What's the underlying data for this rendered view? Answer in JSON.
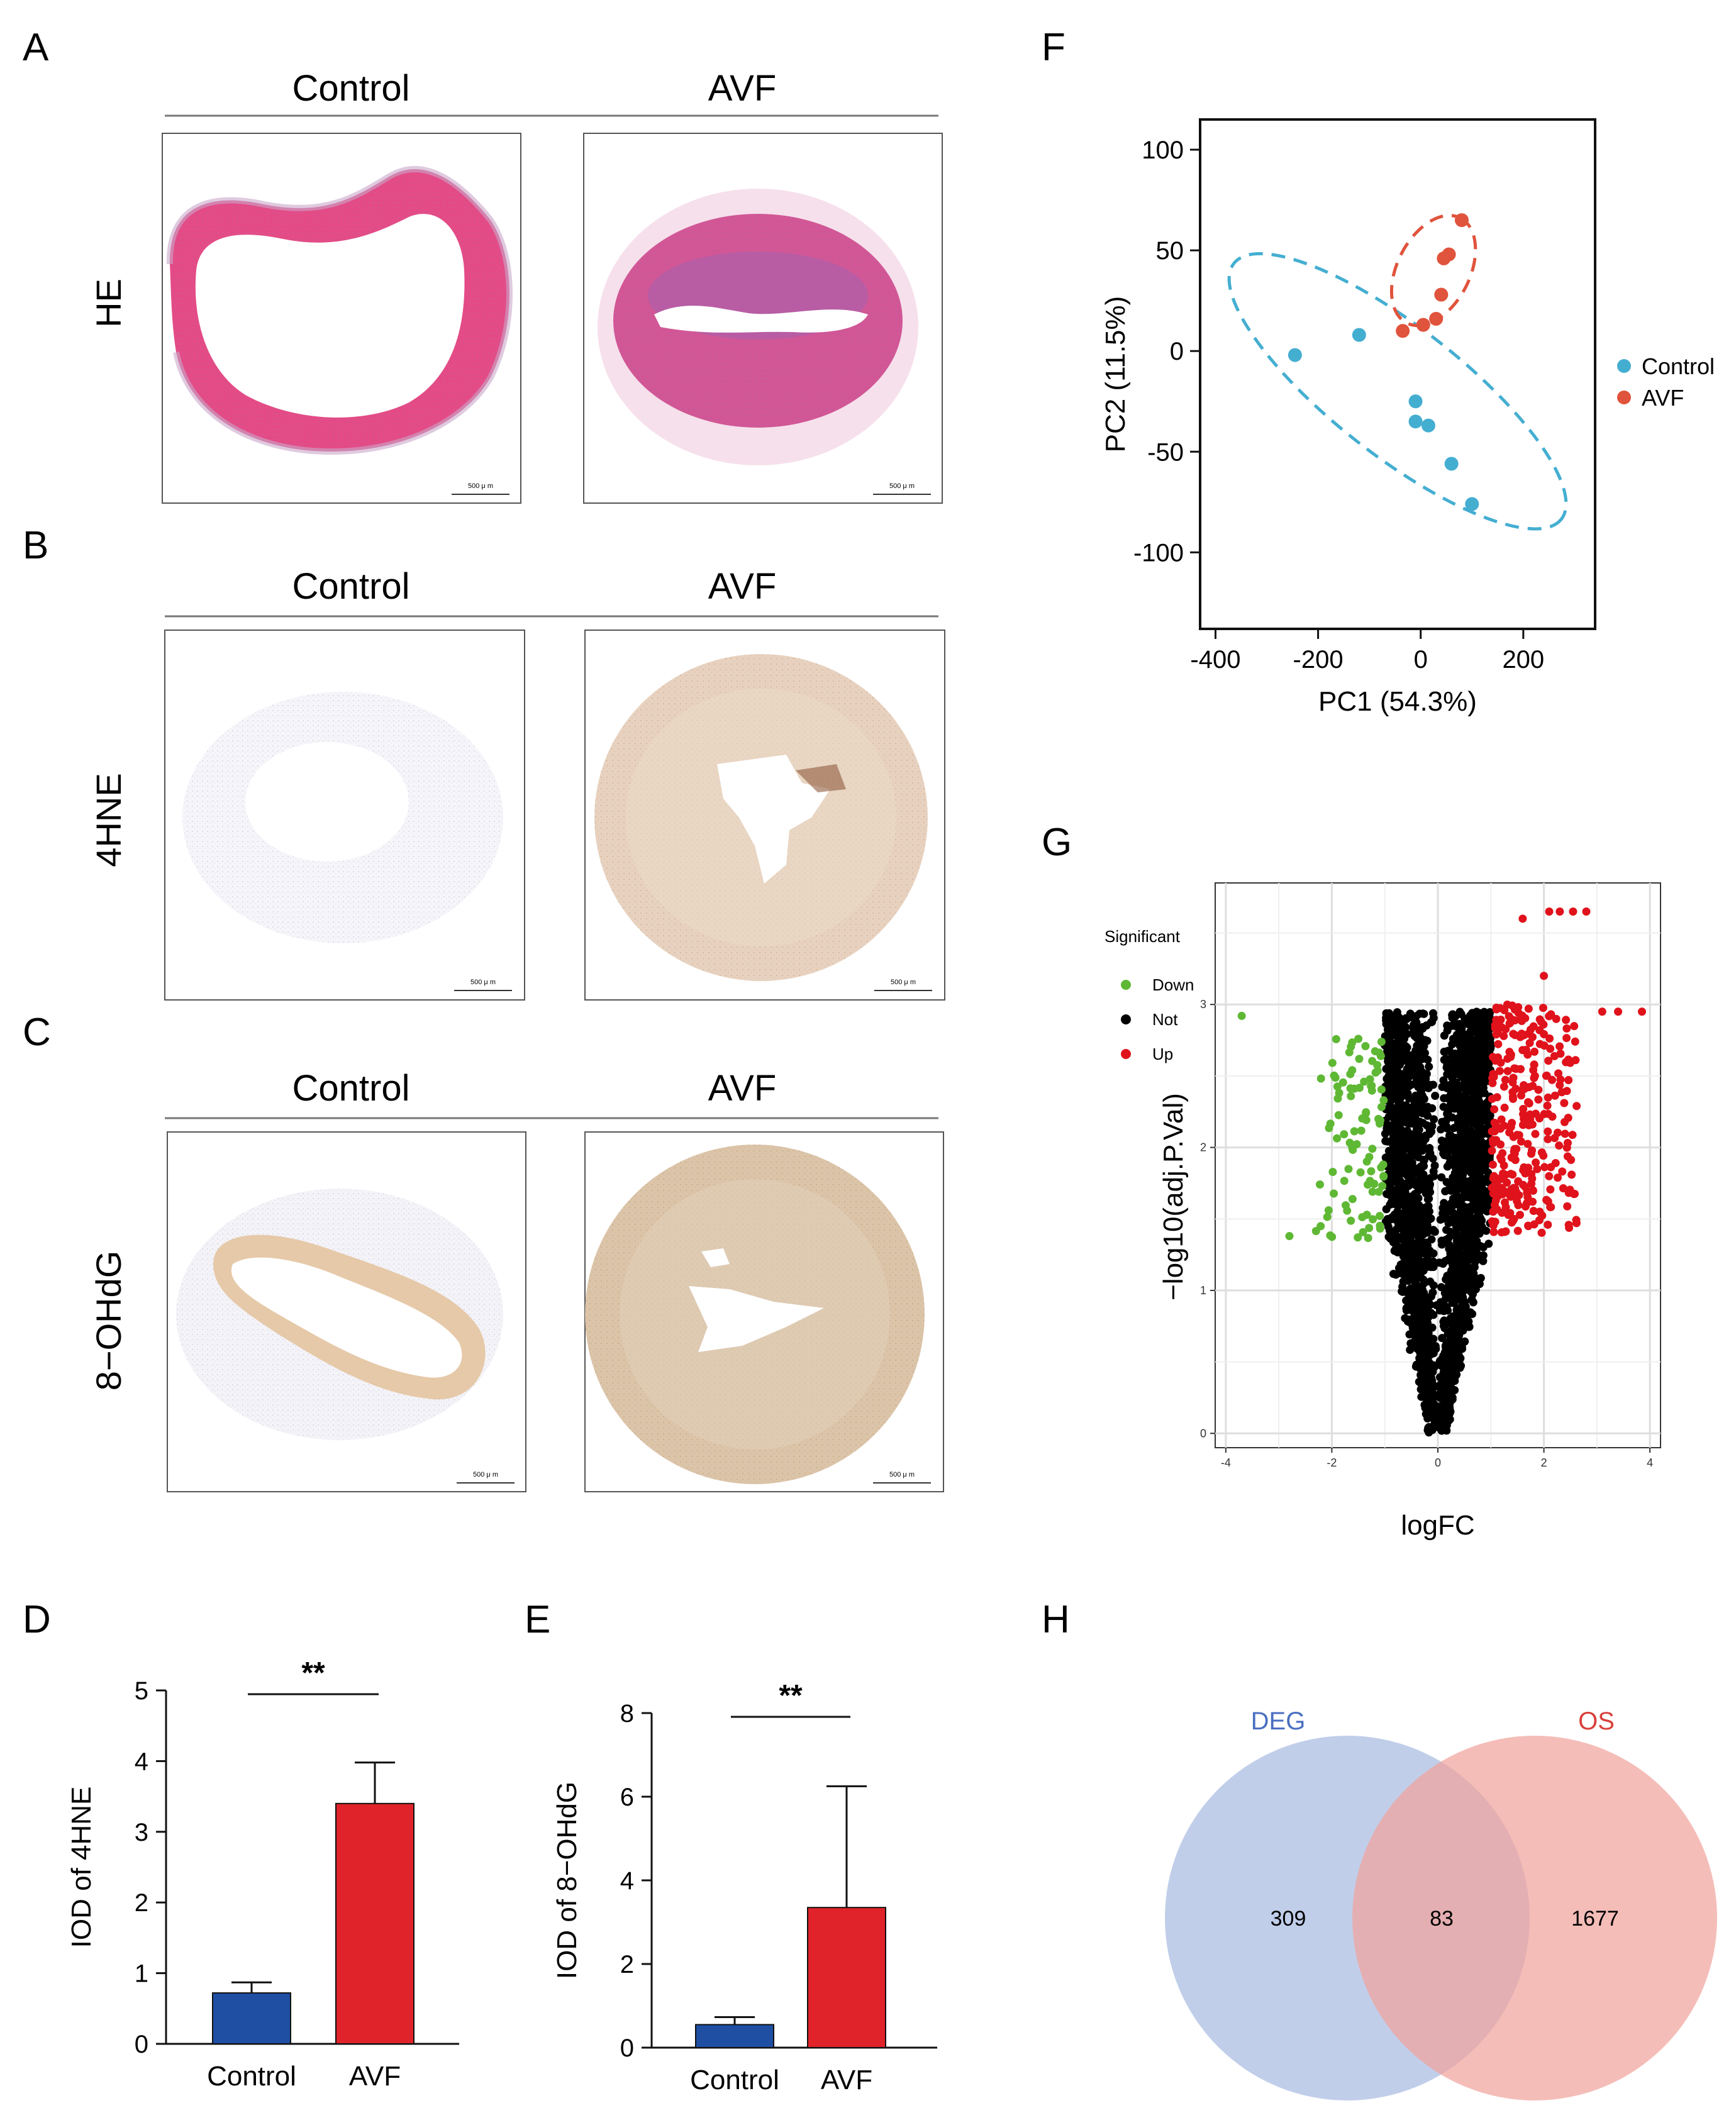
{
  "panels": {
    "A": "A",
    "B": "B",
    "C": "C",
    "D": "D",
    "E": "E",
    "F": "F",
    "G": "G",
    "H": "H"
  },
  "histology": {
    "group_labels": [
      "Control",
      "AVF"
    ],
    "rows": [
      "HE",
      "4HNE",
      "8−OHdG"
    ],
    "scale_bar": "500 μ m"
  },
  "colors": {
    "control": "#1f4fa3",
    "avf": "#e0232a",
    "pca_control": "#44aed1",
    "pca_avf": "#e0533c",
    "down": "#5fb834",
    "not": "#000000",
    "up": "#e0121b",
    "deg_circle": "#b6c6e6",
    "os_circle": "#f1a39c"
  },
  "chart_data": [
    {
      "id": "D",
      "type": "bar",
      "categories": [
        "Control",
        "AVF"
      ],
      "values": [
        0.72,
        3.4
      ],
      "errors": [
        0.15,
        0.58
      ],
      "ylabel": "IOD of 4HNE",
      "ylim": [
        0,
        5
      ],
      "yticks": [
        "0",
        "1",
        "2",
        "3",
        "4",
        "5"
      ],
      "significance": "**"
    },
    {
      "id": "E",
      "type": "bar",
      "categories": [
        "Control",
        "AVF"
      ],
      "values": [
        0.55,
        3.35
      ],
      "errors": [
        0.18,
        2.9
      ],
      "ylabel": "IOD of 8−OHdG",
      "ylim": [
        0,
        8
      ],
      "yticks": [
        "0",
        "2",
        "4",
        "6",
        "8"
      ],
      "significance": "**"
    },
    {
      "id": "F",
      "type": "scatter",
      "xlabel": "PC1 (54.3%)",
      "ylabel": "PC2 (11.5%)",
      "xlim": [
        -430,
        340
      ],
      "ylim": [
        -138,
        115
      ],
      "xticks": [
        "-400",
        "-200",
        "0",
        "200"
      ],
      "yticks": [
        "100",
        "50",
        "0",
        "-50",
        "-100"
      ],
      "legend": [
        "Control",
        "AVF"
      ],
      "series": [
        {
          "name": "Control",
          "points": [
            [
              -245,
              -2
            ],
            [
              -120,
              8
            ],
            [
              -10,
              -25
            ],
            [
              -10,
              -35
            ],
            [
              15,
              -37
            ],
            [
              60,
              -56
            ],
            [
              100,
              -76
            ]
          ]
        },
        {
          "name": "AVF",
          "points": [
            [
              -35,
              10
            ],
            [
              5,
              13
            ],
            [
              30,
              16
            ],
            [
              40,
              28
            ],
            [
              45,
              46
            ],
            [
              55,
              48
            ],
            [
              80,
              65
            ]
          ]
        }
      ]
    },
    {
      "id": "G",
      "type": "scatter",
      "xlabel": "logFC",
      "ylabel": "−log10(adj.P.Val)",
      "xlim": [
        -4.2,
        4.2
      ],
      "ylim": [
        -0.1,
        3.85
      ],
      "xticks": [
        "-4",
        "-2",
        "0",
        "2",
        "4"
      ],
      "yticks": [
        "0",
        "1",
        "2",
        "3"
      ],
      "legend_title": "Significant",
      "legend": [
        "Down",
        "Not",
        "Up"
      ],
      "counts": {
        "Down": 95,
        "Not": 2500,
        "Up": 300
      }
    },
    {
      "id": "H",
      "type": "venn",
      "sets": [
        "DEG",
        "OS"
      ],
      "only_left": "309",
      "intersection": "83",
      "only_right": "1677"
    }
  ]
}
